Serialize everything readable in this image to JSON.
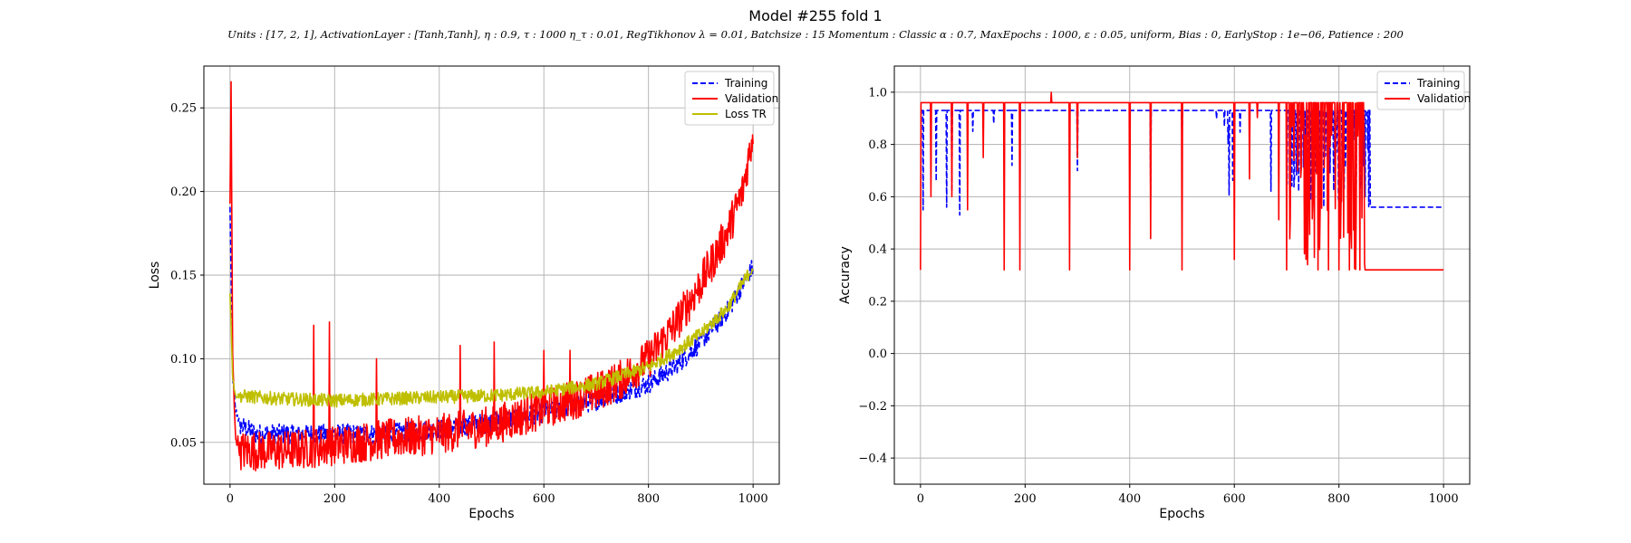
{
  "title": "Model #255 fold 1",
  "subtitle": "Units : [17, 2, 1], ActivationLayer : [Tanh,Tanh], η : 0.9, τ : 1000 η_τ : 0.01, RegTikhonov λ = 0.01, Batchsize : 15 Momentum : Classic α : 0.7, MaxEpochs : 1000, ε : 0.05, uniform, Bias : 0, EarlyStop : 1e−06, Patience : 200",
  "colors": {
    "training": "#0000ff",
    "validation": "#ff0000",
    "loss_tr": "#bfbf00",
    "grid": "#b0b0b0"
  },
  "chart_data": [
    {
      "type": "line",
      "xlabel": "Epochs",
      "ylabel": "Loss",
      "xlim": [
        -50,
        1050
      ],
      "ylim": [
        0.025,
        0.275
      ],
      "xticks": [
        0,
        200,
        400,
        600,
        800,
        1000
      ],
      "yticks": [
        0.05,
        0.1,
        0.15,
        0.2,
        0.25
      ],
      "ytick_labels": [
        "0.05",
        "0.10",
        "0.15",
        "0.20",
        "0.25"
      ],
      "grid": true,
      "legend_position": "top-right",
      "series": [
        {
          "name": "Training",
          "style": "dashed",
          "color": "#0000ff",
          "x": [
            0,
            5,
            10,
            20,
            50,
            100,
            200,
            300,
            400,
            500,
            600,
            700,
            800,
            850,
            900,
            950,
            1000
          ],
          "y": [
            0.19,
            0.09,
            0.07,
            0.06,
            0.055,
            0.055,
            0.055,
            0.055,
            0.058,
            0.062,
            0.068,
            0.075,
            0.085,
            0.095,
            0.11,
            0.128,
            0.155
          ],
          "noise": 0.006
        },
        {
          "name": "Validation",
          "style": "solid",
          "color": "#ff0000",
          "x": [
            0,
            2,
            5,
            10,
            20,
            50,
            100,
            200,
            300,
            400,
            500,
            600,
            700,
            750,
            800,
            850,
            900,
            950,
            980,
            1000
          ],
          "y": [
            0.19,
            0.265,
            0.1,
            0.055,
            0.045,
            0.045,
            0.045,
            0.048,
            0.052,
            0.055,
            0.06,
            0.07,
            0.08,
            0.088,
            0.1,
            0.12,
            0.145,
            0.175,
            0.2,
            0.235
          ],
          "noise": 0.012,
          "spikes": [
            [
              160,
              0.12
            ],
            [
              190,
              0.122
            ],
            [
              280,
              0.1
            ],
            [
              440,
              0.108
            ],
            [
              505,
              0.11
            ],
            [
              600,
              0.105
            ],
            [
              650,
              0.105
            ]
          ]
        },
        {
          "name": "Loss TR",
          "style": "solid",
          "color": "#bfbf00",
          "x": [
            0,
            5,
            10,
            50,
            100,
            200,
            300,
            400,
            500,
            600,
            700,
            800,
            850,
            900,
            950,
            1000
          ],
          "y": [
            0.14,
            0.09,
            0.078,
            0.077,
            0.076,
            0.075,
            0.076,
            0.077,
            0.078,
            0.08,
            0.085,
            0.095,
            0.104,
            0.115,
            0.13,
            0.155
          ],
          "noise": 0.004
        }
      ]
    },
    {
      "type": "line",
      "xlabel": "Epochs",
      "ylabel": "Accuracy",
      "xlim": [
        -50,
        1050
      ],
      "ylim": [
        -0.5,
        1.1
      ],
      "xticks": [
        0,
        200,
        400,
        600,
        800,
        1000
      ],
      "yticks": [
        -0.4,
        -0.2,
        0.0,
        0.2,
        0.4,
        0.6,
        0.8,
        1.0
      ],
      "ytick_labels": [
        "−0.4",
        "−0.2",
        "0.0",
        "0.2",
        "0.4",
        "0.6",
        "0.8",
        "1.0"
      ],
      "grid": true,
      "legend_position": "top-right",
      "series": [
        {
          "name": "Training",
          "style": "dashed",
          "color": "#0000ff",
          "base": 0.93,
          "final": 0.56,
          "final_start": 860,
          "dips": [
            [
              5,
              0.55
            ],
            [
              30,
              0.66
            ],
            [
              50,
              0.56
            ],
            [
              60,
              0.62
            ],
            [
              75,
              0.53
            ],
            [
              100,
              0.85
            ],
            [
              140,
              0.88
            ],
            [
              175,
              0.72
            ],
            [
              300,
              0.7
            ],
            [
              440,
              0.6
            ],
            [
              500,
              0.8
            ],
            [
              750,
              0.7
            ],
            [
              800,
              0.58
            ],
            [
              830,
              0.87
            ],
            [
              850,
              0.6
            ]
          ]
        },
        {
          "name": "Validation",
          "style": "solid",
          "color": "#ff0000",
          "base": 0.96,
          "final": 0.32,
          "final_start": 850,
          "dips": [
            [
              0,
              0.32
            ],
            [
              20,
              0.6
            ],
            [
              60,
              0.6
            ],
            [
              90,
              0.55
            ],
            [
              120,
              0.75
            ],
            [
              160,
              0.32
            ],
            [
              190,
              0.32
            ],
            [
              250,
              1.0
            ],
            [
              285,
              0.32
            ],
            [
              300,
              0.75
            ],
            [
              400,
              0.32
            ],
            [
              440,
              0.44
            ],
            [
              500,
              0.32
            ],
            [
              600,
              0.36
            ],
            [
              700,
              0.32
            ],
            [
              740,
              0.34
            ],
            [
              760,
              0.32
            ],
            [
              780,
              0.32
            ],
            [
              800,
              0.32
            ],
            [
              820,
              0.32
            ],
            [
              840,
              0.32
            ]
          ]
        }
      ]
    }
  ]
}
